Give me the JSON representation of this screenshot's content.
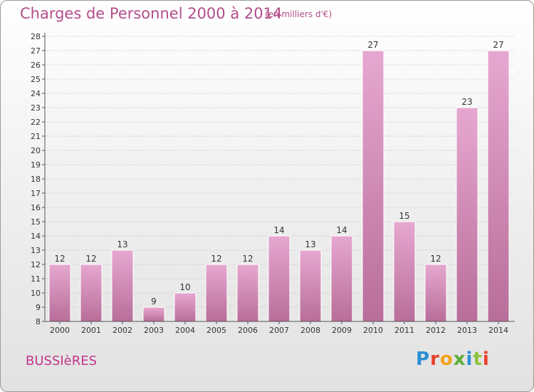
{
  "header": {
    "title": "Charges de Personnel 2000 à 2014",
    "unit": "(en milliers d'€)"
  },
  "footer": {
    "commune": "BUSSIèRES",
    "logo_text": "Proxiti",
    "logo_colors": [
      "#2a8fd4",
      "#e8402a",
      "#f3a21c",
      "#5aae34",
      "#2a8fd4",
      "#8bc43f",
      "#e8402a"
    ]
  },
  "colors": {
    "bar_light": "#e6a8d0",
    "bar_dark": "#b86e99",
    "bar_edge": "#ffffff",
    "text": "#333333",
    "grid": "#bdbdbd",
    "brand": "#b24d8a"
  },
  "chart_data": {
    "type": "bar",
    "categories": [
      "2000",
      "2001",
      "2002",
      "2003",
      "2004",
      "2005",
      "2006",
      "2007",
      "2008",
      "2009",
      "2010",
      "2011",
      "2012",
      "2013",
      "2014"
    ],
    "values": [
      12,
      12,
      13,
      9,
      10,
      12,
      12,
      14,
      13,
      14,
      27,
      15,
      12,
      23,
      27
    ],
    "ylim": [
      8,
      28
    ],
    "yticks": [
      8,
      9,
      10,
      11,
      12,
      13,
      14,
      15,
      16,
      17,
      18,
      19,
      20,
      21,
      22,
      23,
      24,
      25,
      26,
      27,
      28
    ],
    "grid": "horizontal dotted",
    "legend": "none"
  }
}
